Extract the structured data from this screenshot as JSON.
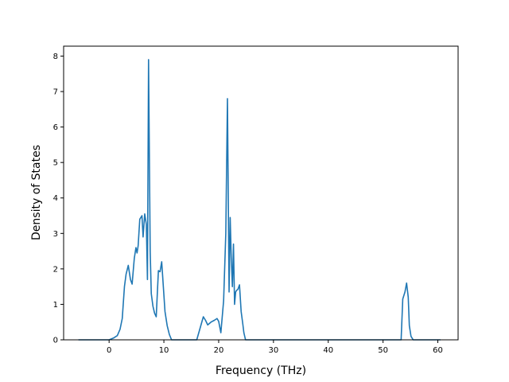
{
  "chart_data": {
    "type": "line",
    "title": "",
    "xlabel": "Frequency (THz)",
    "ylabel": "Density of States",
    "xlim": [
      -8.3,
      63.7
    ],
    "ylim": [
      0,
      8.28
    ],
    "xticks": [
      0,
      10,
      20,
      30,
      40,
      50,
      60
    ],
    "yticks": [
      0,
      1,
      2,
      3,
      4,
      5,
      6,
      7,
      8
    ],
    "grid": false,
    "legend": "none",
    "series": [
      {
        "color": "#1f77b4",
        "x": [
          -5.6,
          -1.0,
          0.0,
          0.8,
          1.5,
          2.0,
          2.4,
          2.8,
          3.1,
          3.5,
          3.9,
          4.2,
          4.6,
          4.9,
          5.1,
          5.3,
          5.6,
          6.0,
          6.2,
          6.5,
          6.8,
          7.0,
          7.2,
          7.5,
          7.7,
          8.0,
          8.3,
          8.6,
          9.0,
          9.3,
          9.6,
          9.9,
          10.2,
          10.6,
          11.0,
          11.4,
          11.8,
          12.5,
          14.0,
          16.0,
          16.5,
          17.2,
          17.6,
          18.0,
          18.6,
          19.2,
          19.7,
          20.0,
          20.4,
          20.9,
          21.3,
          21.6,
          21.9,
          22.1,
          22.3,
          22.5,
          22.7,
          22.9,
          23.1,
          23.3,
          23.5,
          23.8,
          24.1,
          24.4,
          24.6,
          24.9,
          25.2,
          25.6,
          25.9,
          26.5,
          53.0,
          53.3,
          53.6,
          54.0,
          54.3,
          54.6,
          54.8,
          55.1,
          55.5,
          56.5,
          60.5
        ],
        "y": [
          0,
          0,
          0,
          0.05,
          0.12,
          0.3,
          0.6,
          1.5,
          1.85,
          2.1,
          1.7,
          1.57,
          2.3,
          2.6,
          2.45,
          2.65,
          3.4,
          3.5,
          2.9,
          3.55,
          3.25,
          1.7,
          7.9,
          2.5,
          1.3,
          0.95,
          0.75,
          0.65,
          1.95,
          1.92,
          2.2,
          1.5,
          0.8,
          0.4,
          0.15,
          0.0,
          0,
          0,
          0,
          0,
          0.27,
          0.65,
          0.55,
          0.42,
          0.5,
          0.55,
          0.6,
          0.52,
          0.2,
          1.1,
          3.0,
          6.8,
          1.35,
          3.45,
          2.3,
          1.5,
          2.7,
          1.0,
          1.35,
          1.4,
          1.42,
          1.55,
          0.8,
          0.45,
          0.2,
          0.0,
          0,
          0,
          0,
          0,
          0,
          0,
          1.15,
          1.35,
          1.6,
          1.2,
          0.4,
          0.1,
          0.0,
          0,
          0
        ]
      }
    ]
  }
}
